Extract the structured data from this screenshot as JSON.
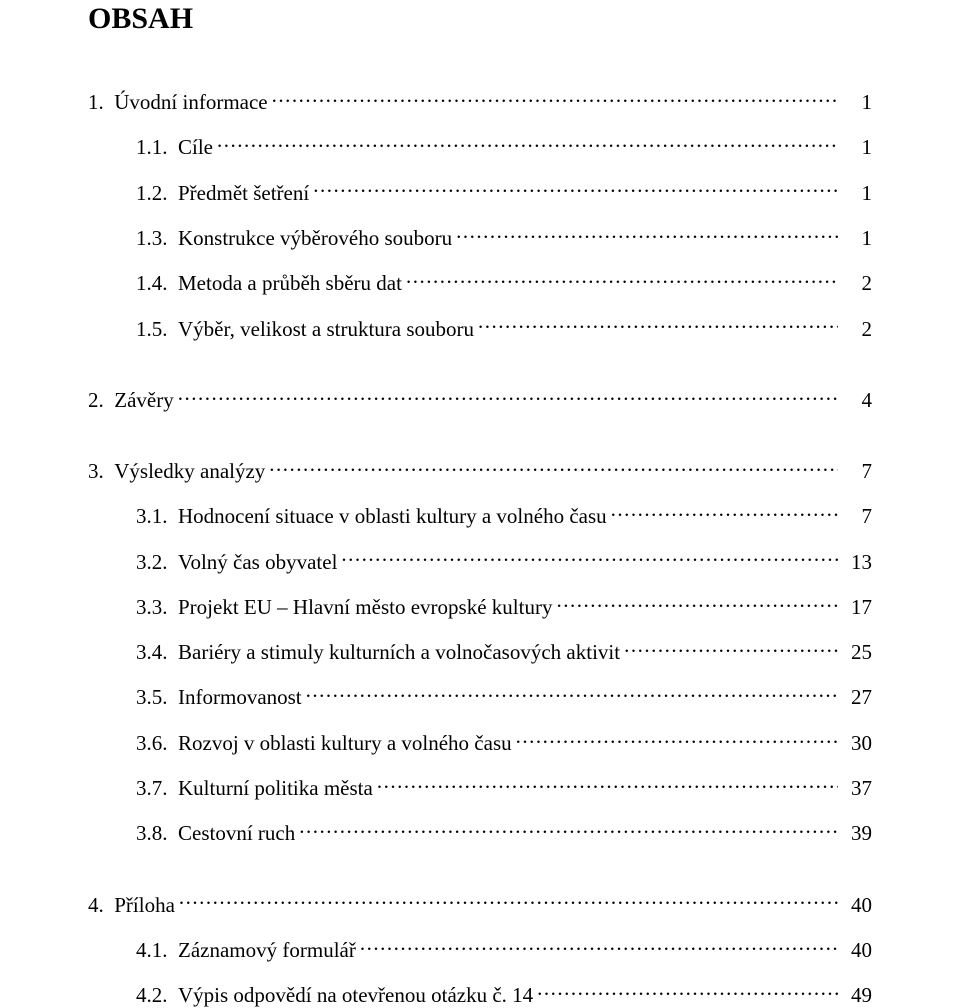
{
  "title": "OBSAH",
  "font_family": "Times New Roman",
  "text_color": "#000000",
  "background_color": "#ffffff",
  "entries": [
    {
      "level": 1,
      "label": "1.  Úvodní informace",
      "page": "1",
      "gap": "lg"
    },
    {
      "level": 2,
      "label": "1.1.  Cíle",
      "page": "1",
      "gap": "md"
    },
    {
      "level": 2,
      "label": "1.2.  Předmět šetření",
      "page": "1",
      "gap": "md"
    },
    {
      "level": 2,
      "label": "1.3.  Konstrukce výběrového souboru",
      "page": "1",
      "gap": "md"
    },
    {
      "level": 2,
      "label": "1.4.  Metoda a průběh sběru dat",
      "page": "2",
      "gap": "md"
    },
    {
      "level": 2,
      "label": "1.5.  Výběr, velikost a struktura souboru",
      "page": "2",
      "gap": "md"
    },
    {
      "level": 1,
      "label": "2.  Závěry",
      "page": "4",
      "gap": "lg"
    },
    {
      "level": 1,
      "label": "3.  Výsledky analýzy",
      "page": "7",
      "gap": "lg"
    },
    {
      "level": 2,
      "label": "3.1.  Hodnocení situace v oblasti kultury a volného času",
      "page": "7",
      "gap": "md"
    },
    {
      "level": 2,
      "label": "3.2.  Volný čas obyvatel",
      "page": "13",
      "gap": "md"
    },
    {
      "level": 2,
      "label": "3.3.  Projekt EU – Hlavní město evropské kultury",
      "page": "17",
      "gap": "md"
    },
    {
      "level": 2,
      "label": "3.4.  Bariéry a stimuly kulturních a volnočasových aktivit",
      "page": "25",
      "gap": "md"
    },
    {
      "level": 2,
      "label": "3.5.  Informovanost",
      "page": "27",
      "gap": "md"
    },
    {
      "level": 2,
      "label": "3.6.  Rozvoj v oblasti kultury a volného času",
      "page": "30",
      "gap": "md"
    },
    {
      "level": 2,
      "label": "3.7.  Kulturní politika města",
      "page": "37",
      "gap": "md"
    },
    {
      "level": 2,
      "label": "3.8.  Cestovní ruch",
      "page": "39",
      "gap": "md"
    },
    {
      "level": 1,
      "label": "4.  Příloha",
      "page": "40",
      "gap": "lg"
    },
    {
      "level": 2,
      "label": "4.1.  Záznamový formulář",
      "page": "40",
      "gap": "md"
    },
    {
      "level": 2,
      "label": "4.2.  Výpis odpovědí na otevřenou otázku č. 14",
      "page": "49",
      "gap": "md"
    }
  ]
}
